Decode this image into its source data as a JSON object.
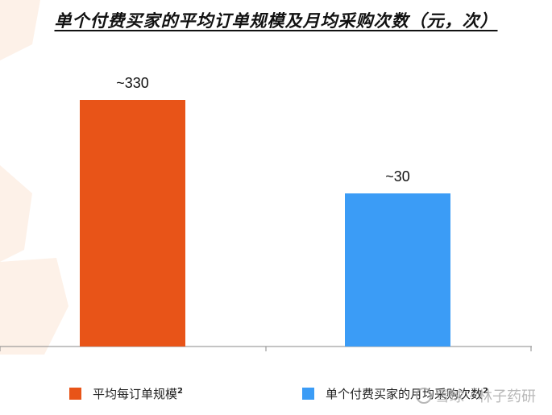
{
  "chart_data": {
    "type": "bar",
    "title": "单个付费买家的平均订单规模及月均采购次数（元，次）",
    "categories": [
      "平均每订单规模",
      "单个付费买家的月均采购次数"
    ],
    "values": [
      330,
      30
    ],
    "data_labels": [
      "~330",
      "~30"
    ],
    "colors": [
      "#E85418",
      "#3B9CF6"
    ],
    "legend": [
      {
        "label": "平均每订单规模",
        "sup": "2",
        "color": "#E85418"
      },
      {
        "label": "单个付费买家的月均采购次数",
        "sup": "2",
        "color": "#3B9CF6"
      }
    ],
    "ylim": [
      0,
      400
    ],
    "grid": false,
    "legend_position": "bottom"
  },
  "watermark": {
    "text": "雪球 · 林子药研"
  }
}
